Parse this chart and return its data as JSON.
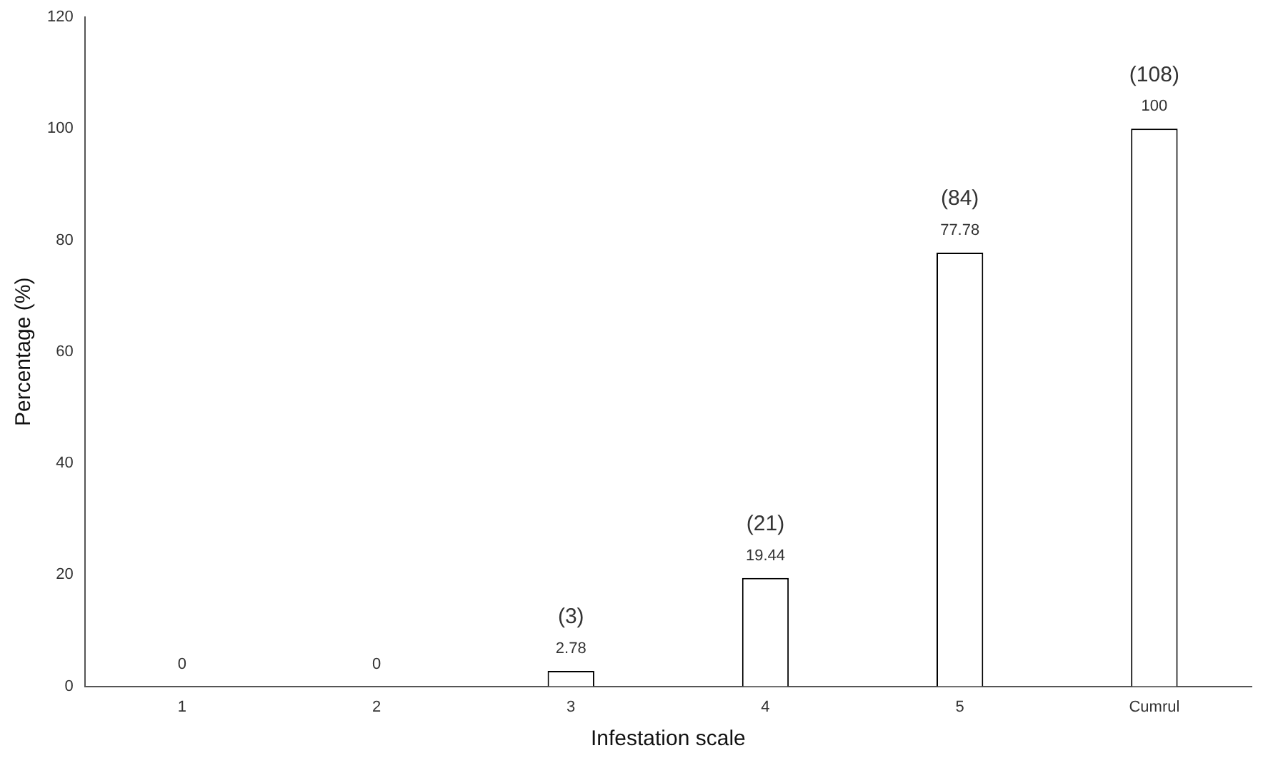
{
  "chart_data": {
    "type": "bar",
    "xlabel": "Infestation scale",
    "ylabel": "Percentage (%)",
    "categories": [
      "1",
      "2",
      "3",
      "4",
      "5",
      "Cumrul"
    ],
    "values": [
      0,
      0,
      2.78,
      19.44,
      77.78,
      100
    ],
    "color": "#ffffff",
    "ylim": [
      0,
      120
    ],
    "yticks": [
      0,
      20,
      40,
      60,
      80,
      100,
      120
    ],
    "grid": false,
    "legend": false,
    "data_labels": true,
    "annotations": [
      {
        "text": "(3)",
        "x": "3",
        "y": 2.78
      },
      {
        "text": "(21)",
        "x": "4",
        "y": 19.44
      },
      {
        "text": "(84)",
        "x": "5",
        "y": 77.78
      },
      {
        "text": "(108)",
        "x": "Cumrul",
        "y": 100
      }
    ]
  }
}
